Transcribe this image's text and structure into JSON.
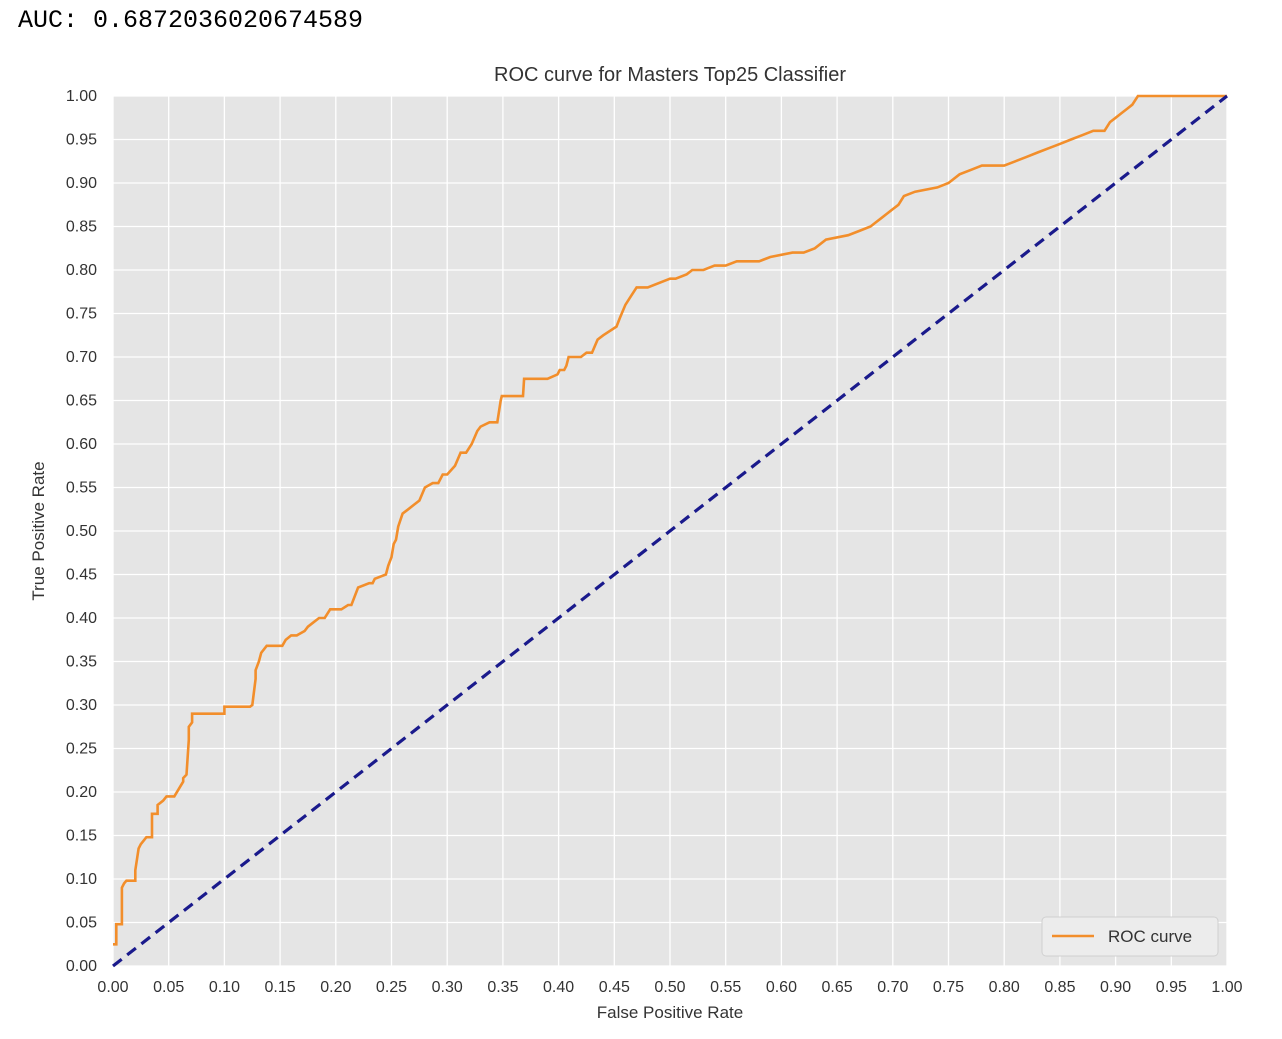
{
  "header": {
    "auc_text": "AUC: 0.6872036020674589"
  },
  "colors": {
    "background": "#e5e5e5",
    "grid": "#ffffff",
    "roc_line": "#f28e2b",
    "diagonal": "#1a1a8c"
  },
  "chart_data": {
    "type": "line",
    "title": "ROC curve for Masters Top25 Classifier",
    "xlabel": "False Positive Rate",
    "ylabel": "True Positive Rate",
    "xlim": [
      0.0,
      1.0
    ],
    "ylim": [
      0.0,
      1.0
    ],
    "grid": true,
    "legend_position": "lower-right",
    "xticks": [
      "0.00",
      "0.05",
      "0.10",
      "0.15",
      "0.20",
      "0.25",
      "0.30",
      "0.35",
      "0.40",
      "0.45",
      "0.50",
      "0.55",
      "0.60",
      "0.65",
      "0.70",
      "0.75",
      "0.80",
      "0.85",
      "0.90",
      "0.95",
      "1.00"
    ],
    "yticks": [
      "0.00",
      "0.05",
      "0.10",
      "0.15",
      "0.20",
      "0.25",
      "0.30",
      "0.35",
      "0.40",
      "0.45",
      "0.50",
      "0.55",
      "0.60",
      "0.65",
      "0.70",
      "0.75",
      "0.80",
      "0.85",
      "0.90",
      "0.95",
      "1.00"
    ],
    "series": [
      {
        "name": "ROC curve",
        "style": "solid",
        "x": [
          0.0,
          0.003,
          0.003,
          0.008,
          0.008,
          0.01,
          0.012,
          0.02,
          0.02,
          0.023,
          0.025,
          0.028,
          0.03,
          0.035,
          0.035,
          0.04,
          0.04,
          0.045,
          0.048,
          0.055,
          0.063,
          0.063,
          0.066,
          0.068,
          0.068,
          0.071,
          0.071,
          0.073,
          0.075,
          0.1,
          0.1,
          0.123,
          0.125,
          0.126,
          0.128,
          0.128,
          0.131,
          0.133,
          0.138,
          0.152,
          0.155,
          0.16,
          0.165,
          0.172,
          0.175,
          0.18,
          0.185,
          0.19,
          0.195,
          0.205,
          0.211,
          0.214,
          0.214,
          0.22,
          0.23,
          0.233,
          0.235,
          0.245,
          0.247,
          0.25,
          0.252,
          0.254,
          0.256,
          0.26,
          0.265,
          0.27,
          0.275,
          0.28,
          0.287,
          0.292,
          0.296,
          0.3,
          0.307,
          0.312,
          0.317,
          0.322,
          0.327,
          0.33,
          0.338,
          0.345,
          0.348,
          0.349,
          0.355,
          0.368,
          0.369,
          0.39,
          0.399,
          0.401,
          0.405,
          0.407,
          0.409,
          0.42,
          0.425,
          0.43,
          0.435,
          0.44,
          0.452,
          0.455,
          0.46,
          0.465,
          0.47,
          0.48,
          0.5,
          0.505,
          0.515,
          0.52,
          0.53,
          0.54,
          0.55,
          0.56,
          0.57,
          0.58,
          0.59,
          0.61,
          0.62,
          0.63,
          0.64,
          0.66,
          0.67,
          0.68,
          0.685,
          0.69,
          0.695,
          0.7,
          0.705,
          0.71,
          0.72,
          0.74,
          0.75,
          0.76,
          0.77,
          0.78,
          0.8,
          0.81,
          0.82,
          0.83,
          0.84,
          0.85,
          0.86,
          0.87,
          0.88,
          0.89,
          0.895,
          0.9,
          0.905,
          0.91,
          0.915,
          0.92,
          0.93,
          0.94,
          0.95,
          1.0
        ],
        "y": [
          0.025,
          0.025,
          0.048,
          0.048,
          0.09,
          0.095,
          0.098,
          0.098,
          0.11,
          0.135,
          0.14,
          0.145,
          0.148,
          0.148,
          0.175,
          0.175,
          0.185,
          0.19,
          0.195,
          0.195,
          0.212,
          0.216,
          0.22,
          0.26,
          0.275,
          0.28,
          0.29,
          0.29,
          0.29,
          0.29,
          0.298,
          0.298,
          0.3,
          0.31,
          0.33,
          0.34,
          0.35,
          0.36,
          0.368,
          0.368,
          0.375,
          0.38,
          0.38,
          0.385,
          0.39,
          0.395,
          0.4,
          0.4,
          0.41,
          0.41,
          0.415,
          0.415,
          0.415,
          0.435,
          0.44,
          0.44,
          0.445,
          0.45,
          0.46,
          0.47,
          0.485,
          0.49,
          0.505,
          0.52,
          0.525,
          0.53,
          0.535,
          0.55,
          0.555,
          0.555,
          0.565,
          0.565,
          0.575,
          0.59,
          0.59,
          0.6,
          0.615,
          0.62,
          0.625,
          0.625,
          0.65,
          0.655,
          0.655,
          0.655,
          0.675,
          0.675,
          0.68,
          0.685,
          0.685,
          0.69,
          0.7,
          0.7,
          0.705,
          0.705,
          0.72,
          0.725,
          0.735,
          0.745,
          0.76,
          0.77,
          0.78,
          0.78,
          0.79,
          0.79,
          0.795,
          0.8,
          0.8,
          0.805,
          0.805,
          0.81,
          0.81,
          0.81,
          0.815,
          0.82,
          0.82,
          0.825,
          0.835,
          0.84,
          0.845,
          0.85,
          0.855,
          0.86,
          0.865,
          0.87,
          0.875,
          0.885,
          0.89,
          0.895,
          0.9,
          0.91,
          0.915,
          0.92,
          0.92,
          0.925,
          0.93,
          0.935,
          0.94,
          0.945,
          0.95,
          0.955,
          0.96,
          0.96,
          0.97,
          0.975,
          0.98,
          0.985,
          0.99,
          1.0,
          1.0,
          1.0,
          1.0,
          1.0
        ]
      },
      {
        "name": "",
        "style": "dashed",
        "x": [
          0.0,
          1.0
        ],
        "y": [
          0.0,
          1.0
        ]
      }
    ],
    "legend": [
      "ROC curve"
    ]
  }
}
